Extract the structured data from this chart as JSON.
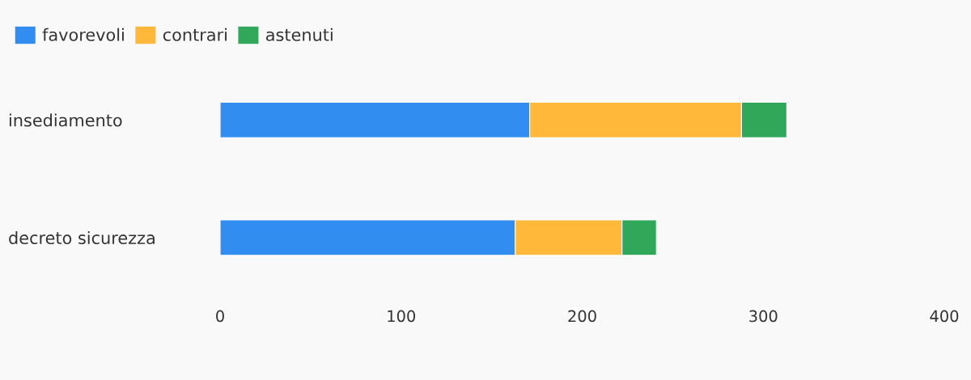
{
  "chart_data": {
    "type": "bar",
    "orientation": "horizontal",
    "stacked": true,
    "categories": [
      "insediamento",
      "decreto sicurezza"
    ],
    "series": [
      {
        "name": "favorevoli",
        "color": "#318ef0",
        "values": [
          171,
          163
        ]
      },
      {
        "name": "contrari",
        "color": "#ffb83a",
        "values": [
          117,
          59
        ]
      },
      {
        "name": "astenuti",
        "color": "#31a75a",
        "values": [
          25,
          19
        ]
      }
    ],
    "xlim": [
      0,
      400
    ],
    "xticks": [
      0,
      100,
      200,
      300,
      400
    ],
    "grid": false,
    "legend": "top left"
  }
}
